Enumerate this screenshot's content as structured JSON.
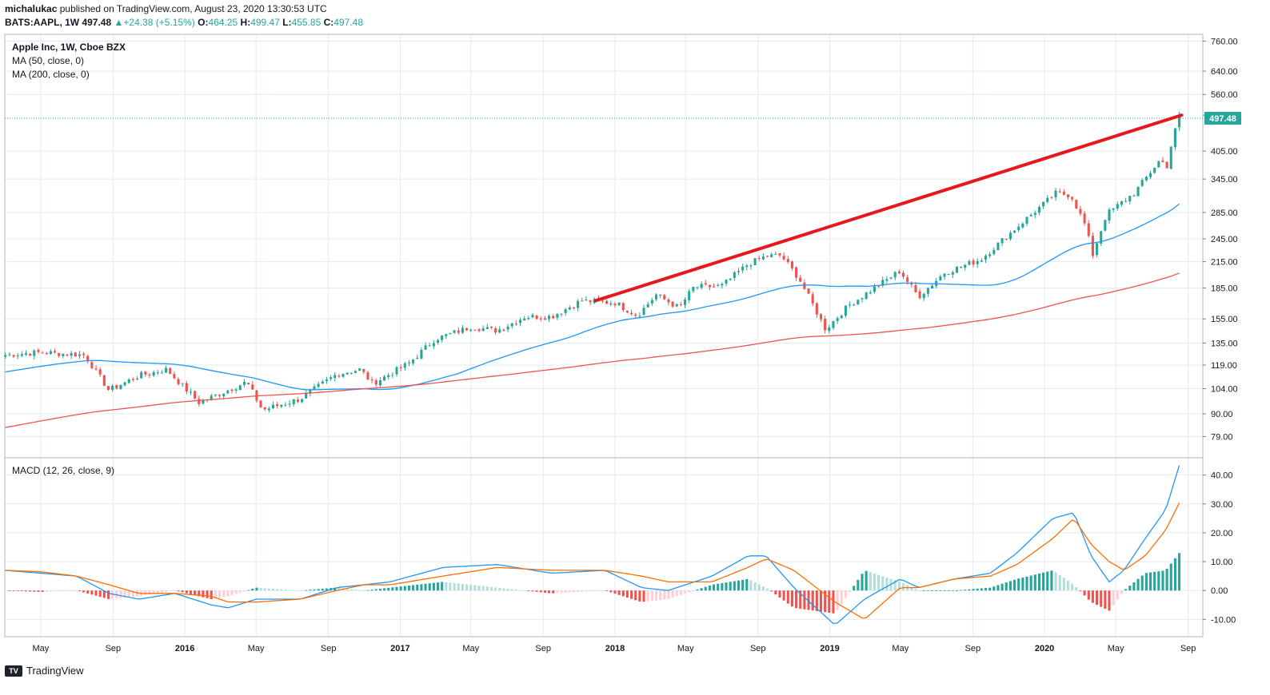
{
  "header": {
    "publisher": "michalukac",
    "published_text": "published on TradingView.com, August 23, 2020 13:30:53 UTC",
    "symbol": "BATS:AAPL, 1W",
    "last": "497.48",
    "change_arrow": "▲",
    "change": "+24.38 (+5.15%)",
    "o_label": "O:",
    "o_value": "464.25",
    "h_label": "H:",
    "h_value": "499.47",
    "l_label": "L:",
    "l_value": "455.85",
    "c_label": "C:",
    "c_value": "497.48"
  },
  "legend": {
    "title": "Apple Inc, 1W, Cboe BZX",
    "ma50": "MA (50, close, 0)",
    "ma200": "MA (200, close, 0)",
    "macd": "MACD (12, 26, close, 9)"
  },
  "price_tag": "497.48",
  "footer": {
    "brand": "TradingView",
    "logo_text": "TV"
  },
  "colors": {
    "up": "#26a69a",
    "down": "#ef5350",
    "ma50": "#2196f3",
    "ma200": "#ef5350",
    "trendline": "#e5191b",
    "macd_line": "#2196f3",
    "signal_line": "#ff6d00",
    "grid": "#e1ecf2"
  },
  "chart_data": {
    "type": "candlestick",
    "y_scale": "log",
    "price_ylim": [
      70,
      790
    ],
    "macd_ylim": [
      -16,
      46
    ],
    "x_tick_labels": [
      "May",
      "Sep",
      "2016",
      "May",
      "Sep",
      "2017",
      "May",
      "Sep",
      "2018",
      "May",
      "Sep",
      "2019",
      "May",
      "Sep",
      "2020",
      "May",
      "Sep"
    ],
    "x_tick_dates": [
      "2015-05",
      "2015-09",
      "2016-01",
      "2016-05",
      "2016-09",
      "2017-01",
      "2017-05",
      "2017-09",
      "2018-01",
      "2018-05",
      "2018-09",
      "2019-01",
      "2019-05",
      "2019-09",
      "2020-01",
      "2020-05",
      "2020-09"
    ],
    "price_ticks": [
      79,
      90,
      104,
      119,
      135,
      155,
      185,
      215,
      245,
      285,
      345,
      405,
      497.48,
      560,
      640,
      760
    ],
    "price_tick_labels": [
      "79.00",
      "90.00",
      "104.00",
      "119.00",
      "135.00",
      "155.00",
      "185.00",
      "215.00",
      "245.00",
      "285.00",
      "345.00",
      "405.00",
      "497.48",
      "560.00",
      "640.00",
      "760.00"
    ],
    "macd_ticks": [
      -10,
      0,
      10,
      20,
      30,
      40
    ],
    "macd_tick_labels": [
      "-10.00",
      "0.00",
      "10.00",
      "20.00",
      "30.00",
      "40.00"
    ],
    "price_anchors": [
      [
        "2015-03-01",
        126
      ],
      [
        "2015-05-01",
        128
      ],
      [
        "2015-07-15",
        126
      ],
      [
        "2015-08-25",
        103
      ],
      [
        "2015-10-15",
        112
      ],
      [
        "2015-12-01",
        116
      ],
      [
        "2016-01-25",
        96
      ],
      [
        "2016-04-15",
        108
      ],
      [
        "2016-05-12",
        92
      ],
      [
        "2016-07-15",
        98
      ],
      [
        "2016-09-15",
        113
      ],
      [
        "2016-10-25",
        116
      ],
      [
        "2016-11-15",
        107
      ],
      [
        "2017-01-15",
        120
      ],
      [
        "2017-03-01",
        138
      ],
      [
        "2017-05-01",
        148
      ],
      [
        "2017-06-15",
        145
      ],
      [
        "2017-08-01",
        157
      ],
      [
        "2017-09-15",
        157
      ],
      [
        "2017-11-05",
        172
      ],
      [
        "2018-01-01",
        170
      ],
      [
        "2018-02-08",
        158
      ],
      [
        "2018-03-12",
        178
      ],
      [
        "2018-04-20",
        165
      ],
      [
        "2018-05-15",
        186
      ],
      [
        "2018-07-01",
        187
      ],
      [
        "2018-08-15",
        212
      ],
      [
        "2018-09-15",
        222
      ],
      [
        "2018-10-10",
        223
      ],
      [
        "2018-11-10",
        195
      ],
      [
        "2018-12-25",
        146
      ],
      [
        "2019-02-01",
        167
      ],
      [
        "2019-04-30",
        204
      ],
      [
        "2019-06-01",
        176
      ],
      [
        "2019-07-15",
        202
      ],
      [
        "2019-09-15",
        218
      ],
      [
        "2019-11-15",
        262
      ],
      [
        "2020-01-20",
        318
      ],
      [
        "2020-02-15",
        315
      ],
      [
        "2020-03-10",
        265
      ],
      [
        "2020-03-23",
        224
      ],
      [
        "2020-04-15",
        282
      ],
      [
        "2020-06-01",
        318
      ],
      [
        "2020-07-15",
        385
      ],
      [
        "2020-07-27",
        372
      ],
      [
        "2020-08-07",
        445
      ],
      [
        "2020-08-21",
        497.48
      ]
    ],
    "macd_anchors": [
      [
        "2015-03-01",
        7,
        7
      ],
      [
        "2015-05-01",
        6,
        6.5
      ],
      [
        "2015-07-01",
        5,
        5
      ],
      [
        "2015-08-25",
        -1,
        2
      ],
      [
        "2015-10-15",
        -3,
        -1
      ],
      [
        "2015-12-15",
        -1,
        -1
      ],
      [
        "2016-02-15",
        -5,
        -2
      ],
      [
        "2016-03-15",
        -6,
        -4
      ],
      [
        "2016-05-01",
        -3,
        -4
      ],
      [
        "2016-07-15",
        -3,
        -3
      ],
      [
        "2016-09-15",
        1,
        0
      ],
      [
        "2016-11-01",
        2,
        2
      ],
      [
        "2016-12-15",
        3,
        2
      ],
      [
        "2017-03-15",
        8,
        5
      ],
      [
        "2017-06-15",
        9,
        8
      ],
      [
        "2017-09-15",
        6,
        7
      ],
      [
        "2017-12-15",
        7,
        7
      ],
      [
        "2018-02-15",
        1,
        5
      ],
      [
        "2018-04-01",
        0,
        3
      ],
      [
        "2018-06-15",
        5,
        3
      ],
      [
        "2018-08-15",
        12,
        8
      ],
      [
        "2018-09-15",
        12,
        11
      ],
      [
        "2018-11-01",
        1,
        7
      ],
      [
        "2019-01-10",
        -12,
        -4
      ],
      [
        "2019-03-01",
        -3,
        -10
      ],
      [
        "2019-05-01",
        4,
        1
      ],
      [
        "2019-06-01",
        1,
        1
      ],
      [
        "2019-08-01",
        4,
        4
      ],
      [
        "2019-10-01",
        6,
        5
      ],
      [
        "2019-11-15",
        13,
        9
      ],
      [
        "2020-01-15",
        25,
        18
      ],
      [
        "2020-02-20",
        27,
        25
      ],
      [
        "2020-03-20",
        12,
        16
      ],
      [
        "2020-04-20",
        3,
        10
      ],
      [
        "2020-05-15",
        7,
        7
      ],
      [
        "2020-06-20",
        18,
        12
      ],
      [
        "2020-07-25",
        28,
        21
      ],
      [
        "2020-08-21",
        46,
        32
      ]
    ],
    "trendline": [
      [
        "2017-11-29",
        172
      ],
      [
        "2020-08-21",
        497.48
      ]
    ],
    "annotations": [
      "497.48"
    ]
  }
}
